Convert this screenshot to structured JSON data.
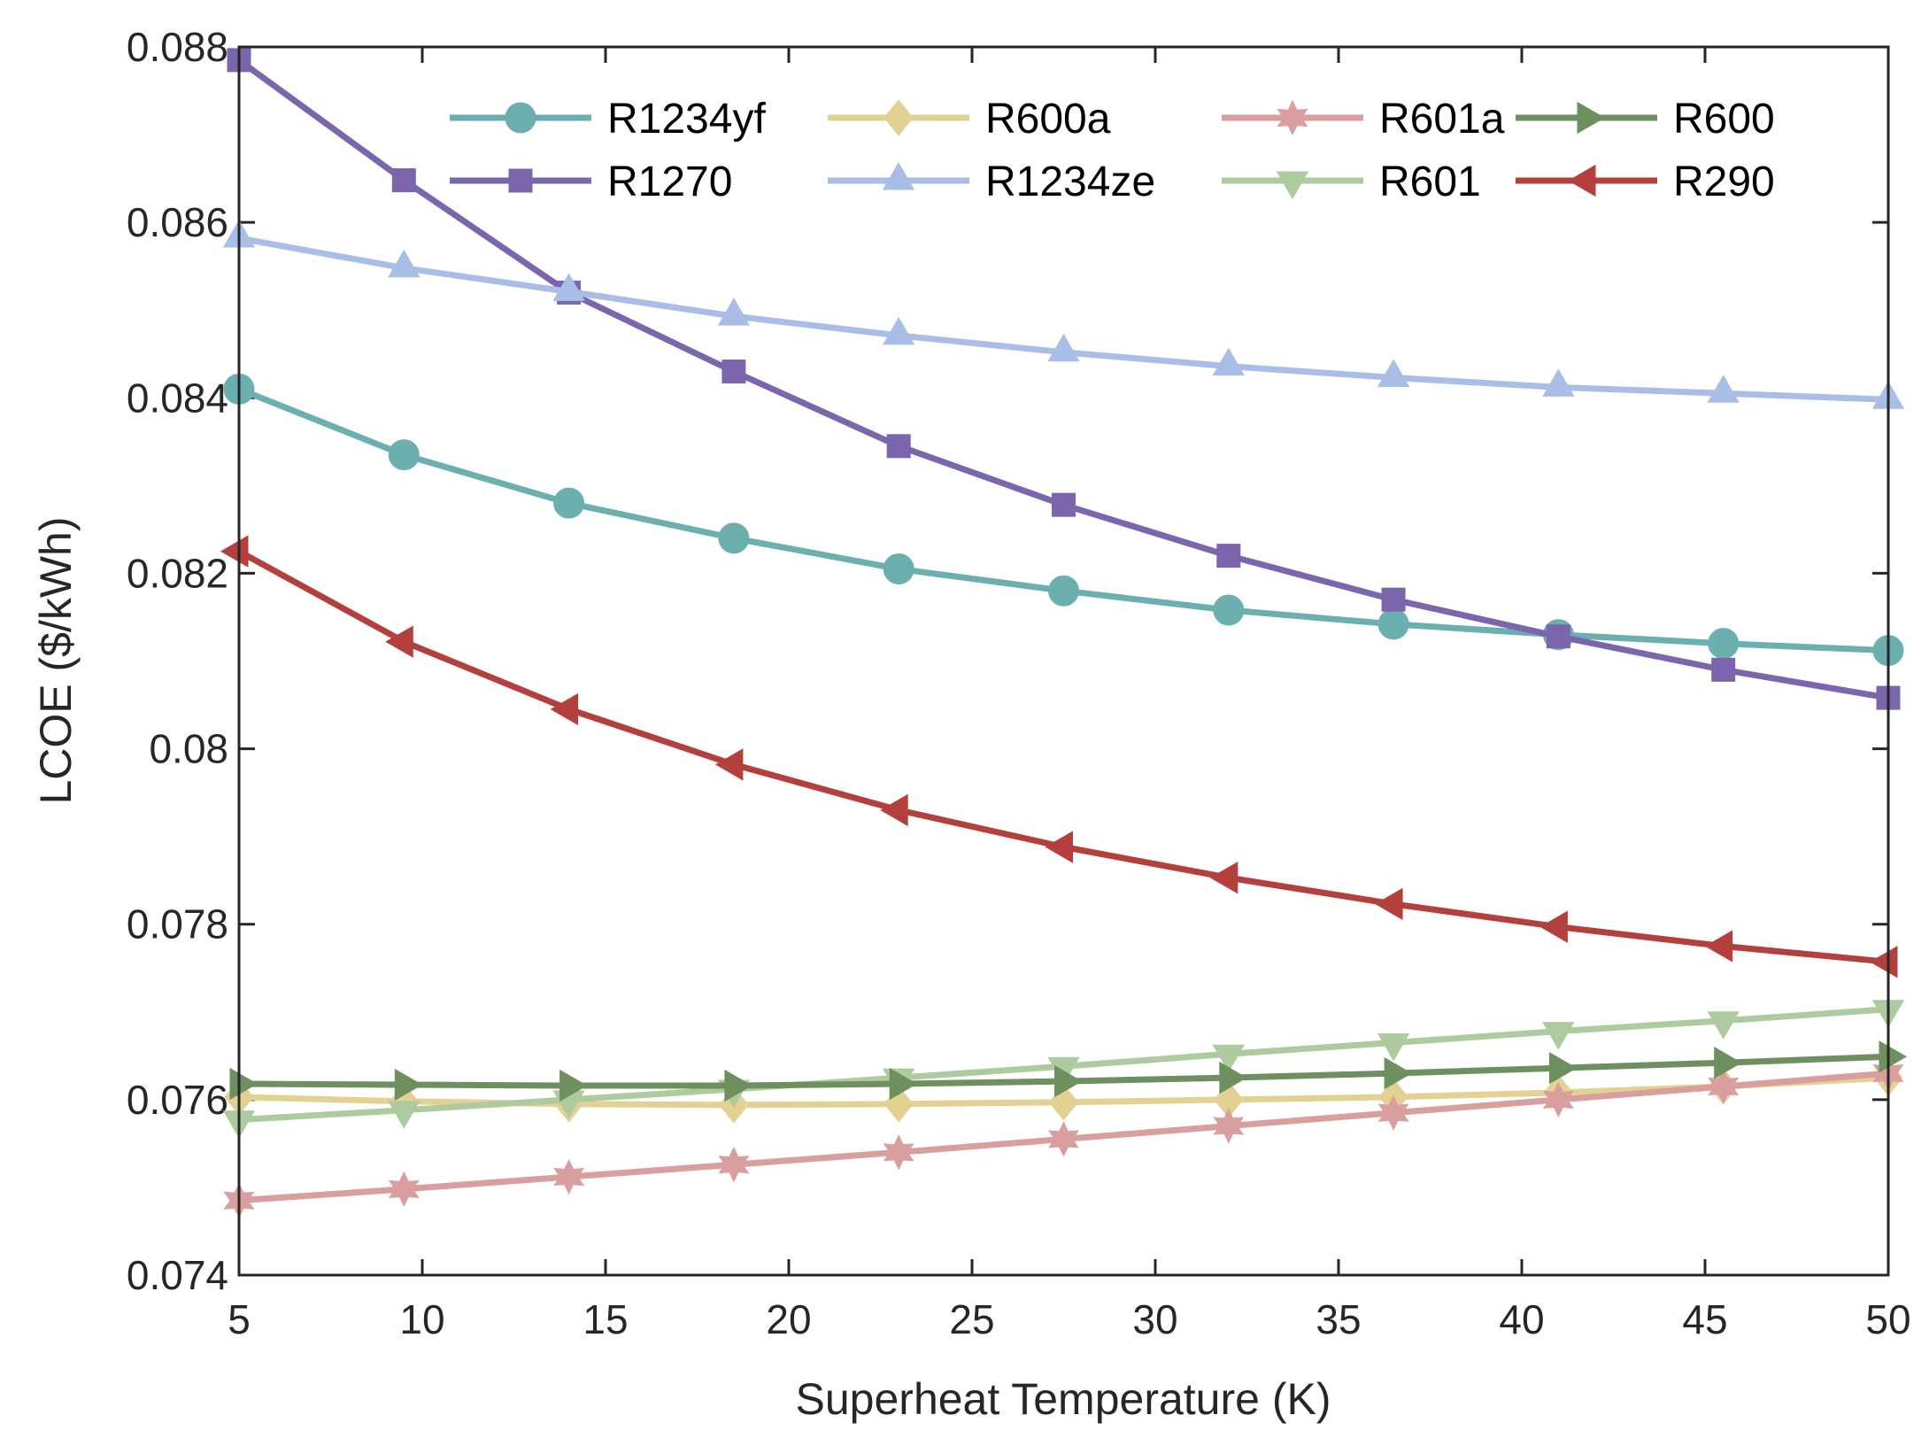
{
  "chart_data": {
    "type": "line",
    "xlabel": "Superheat Temperature (K)",
    "ylabel": "LCOE ($/kWh)",
    "xlim": [
      5,
      50
    ],
    "ylim": [
      0.074,
      0.088
    ],
    "xticks": [
      5,
      10,
      15,
      20,
      25,
      30,
      35,
      40,
      45,
      50
    ],
    "xtick_labels": [
      "5",
      "10",
      "15",
      "20",
      "25",
      "30",
      "35",
      "40",
      "45",
      "50"
    ],
    "yticks": [
      0.074,
      0.076,
      0.078,
      0.08,
      0.082,
      0.084,
      0.086,
      0.088
    ],
    "ytick_labels": [
      "0.074",
      "0.076",
      "0.078",
      "0.08",
      "0.082",
      "0.084",
      "0.086",
      "0.088"
    ],
    "grid": false,
    "legend_position": "top-right",
    "x": [
      5,
      9.5,
      14,
      18.5,
      23,
      27.5,
      32,
      36.5,
      41,
      45.5,
      50
    ],
    "series": [
      {
        "name": "R1234yf",
        "color": "#6BAFAF",
        "marker": "circle",
        "values": [
          0.0841,
          0.08335,
          0.0828,
          0.0824,
          0.08205,
          0.0818,
          0.08158,
          0.08142,
          0.0813,
          0.0812,
          0.08112
        ]
      },
      {
        "name": "R1270",
        "color": "#7B65AD",
        "marker": "square",
        "values": [
          0.08785,
          0.08648,
          0.0852,
          0.0843,
          0.08345,
          0.08278,
          0.0822,
          0.0817,
          0.08128,
          0.0809,
          0.08058
        ]
      },
      {
        "name": "R600a",
        "color": "#E3D194",
        "marker": "diamond",
        "values": [
          0.07603,
          0.07598,
          0.07595,
          0.07594,
          0.07595,
          0.07597,
          0.076,
          0.07603,
          0.07608,
          0.07615,
          0.07625
        ]
      },
      {
        "name": "R1234ze",
        "color": "#A9BEE6",
        "marker": "triangle-up",
        "values": [
          0.08582,
          0.08548,
          0.08521,
          0.08493,
          0.08471,
          0.08452,
          0.08436,
          0.08423,
          0.08412,
          0.08405,
          0.08398
        ]
      },
      {
        "name": "R601a",
        "color": "#D99E9E",
        "marker": "hexagram",
        "values": [
          0.07485,
          0.07498,
          0.07512,
          0.07526,
          0.0754,
          0.07555,
          0.0757,
          0.07585,
          0.076,
          0.07615,
          0.0763
        ]
      },
      {
        "name": "R601",
        "color": "#AECB9F",
        "marker": "triangle-down",
        "values": [
          0.07577,
          0.07588,
          0.076,
          0.07612,
          0.07625,
          0.07638,
          0.07652,
          0.07665,
          0.07678,
          0.0769,
          0.07703
        ]
      },
      {
        "name": "R600",
        "color": "#6E8F5E",
        "marker": "triangle-right",
        "values": [
          0.07618,
          0.07617,
          0.07616,
          0.07616,
          0.07618,
          0.07621,
          0.07625,
          0.0763,
          0.07636,
          0.07642,
          0.07649
        ]
      },
      {
        "name": "R290",
        "color": "#B4403D",
        "marker": "triangle-left",
        "values": [
          0.08225,
          0.08122,
          0.08045,
          0.07982,
          0.0793,
          0.07888,
          0.07853,
          0.07823,
          0.07797,
          0.07775,
          0.07757
        ]
      }
    ]
  }
}
